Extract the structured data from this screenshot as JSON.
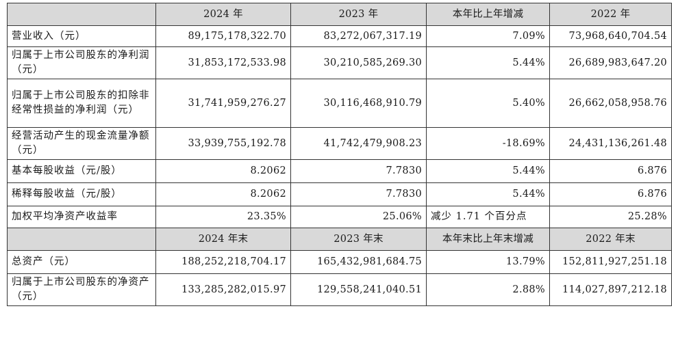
{
  "header1": {
    "blank": "",
    "c1": "2024 年",
    "c2": "2023 年",
    "c3": "本年比上年增减",
    "c4": "2022 年"
  },
  "rows1": [
    {
      "label": "营业收入（元）",
      "v2024": "89,175,178,322.70",
      "v2023": "83,272,067,317.19",
      "change": "7.09%",
      "v2022": "73,968,640,704.54"
    },
    {
      "label": "归属于上市公司股东的净利润（元）",
      "v2024": "31,853,172,533.98",
      "v2023": "30,210,585,269.30",
      "change": "5.44%",
      "v2022": "26,689,983,647.20"
    },
    {
      "label": "归属于上市公司股东的扣除非经常性损益的净利润（元）",
      "v2024": "31,741,959,276.27",
      "v2023": "30,116,468,910.79",
      "change": "5.40%",
      "v2022": "26,662,058,958.76"
    },
    {
      "label": "经营活动产生的现金流量净额（元）",
      "v2024": "33,939,755,192.78",
      "v2023": "41,742,479,908.23",
      "change": "-18.69%",
      "v2022": "24,431,136,261.48"
    },
    {
      "label": "基本每股收益（元/股）",
      "v2024": "8.2062",
      "v2023": "7.7830",
      "change": "5.44%",
      "v2022": "6.876"
    },
    {
      "label": "稀释每股收益（元/股）",
      "v2024": "8.2062",
      "v2023": "7.7830",
      "change": "5.44%",
      "v2022": "6.876"
    },
    {
      "label": "加权平均净资产收益率",
      "v2024": "23.35%",
      "v2023": "25.06%",
      "change": "减少 1.71 个百分点",
      "v2022": "25.28%"
    }
  ],
  "header2": {
    "blank": "",
    "c1": "2024 年末",
    "c2": "2023 年末",
    "c3": "本年末比上年末增减",
    "c4": "2022 年末"
  },
  "rows2": [
    {
      "label": "总资产（元）",
      "v2024": "188,252,218,704.17",
      "v2023": "165,432,981,684.75",
      "change": "13.79%",
      "v2022": "152,811,927,251.18"
    },
    {
      "label": "归属于上市公司股东的净资产（元）",
      "v2024": "133,285,282,015.97",
      "v2023": "129,558,241,040.51",
      "change": "2.88%",
      "v2022": "114,027,897,212.18"
    }
  ]
}
